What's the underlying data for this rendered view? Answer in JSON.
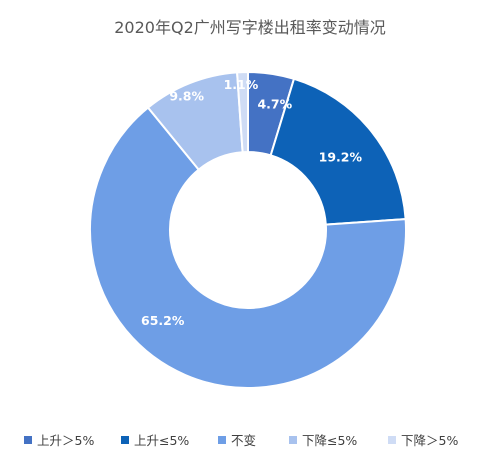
{
  "chart_data": {
    "type": "pie",
    "variant": "donut",
    "title": "2020年Q2广州写字楼出租率变动情况",
    "categories": [
      "上升＞5%",
      "上升≤5%",
      "不变",
      "下降≤5%",
      "下降＞5%"
    ],
    "values": [
      4.7,
      19.2,
      65.2,
      9.8,
      1.1
    ],
    "labels": [
      "4.7%",
      "19.2%",
      "65.2%",
      "9.8%",
      "1.1%"
    ],
    "colors": [
      "#4472c4",
      "#0d62b7",
      "#6e9ee6",
      "#a8c2ee",
      "#cfdcf5"
    ],
    "label_colors": [
      "#ffffff",
      "#ffffff",
      "#ffffff",
      "#ffffff",
      "#ffffff"
    ],
    "legend": "bottom"
  }
}
